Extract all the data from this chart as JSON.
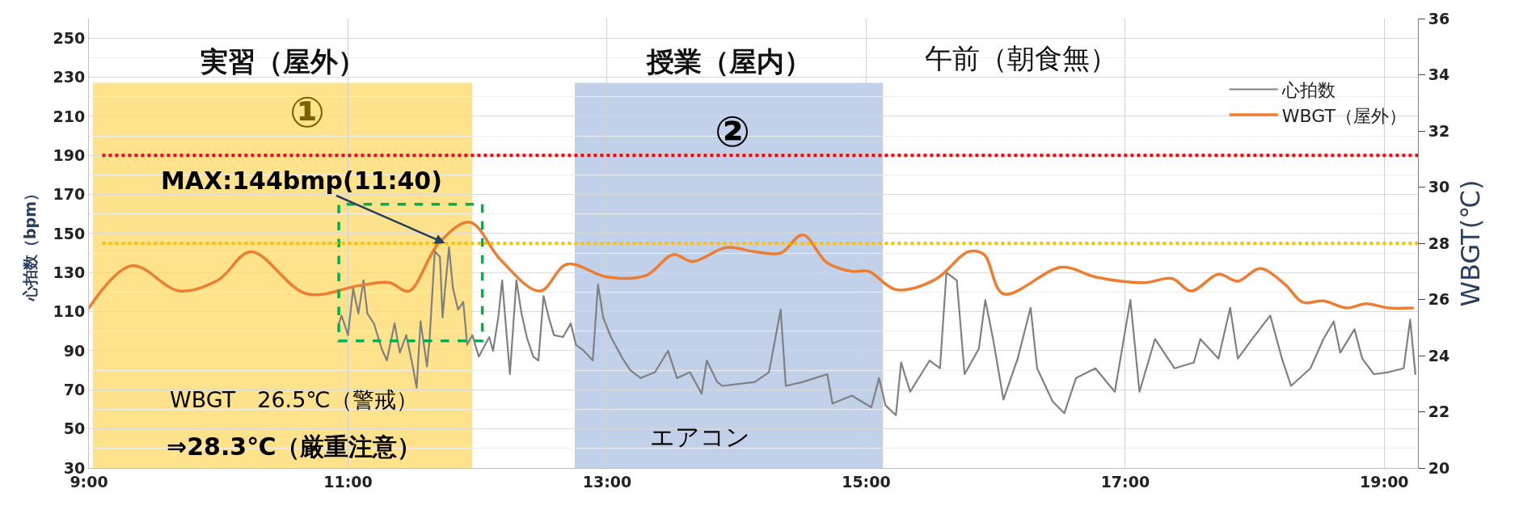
{
  "chart_data": {
    "type": "line",
    "title": "午前（朝食無）",
    "ylabel": "心拍数（bpm）",
    "y2label": "WBGT(℃)",
    "xlim": [
      9,
      19.26
    ],
    "xticks": [
      {
        "value": 9,
        "label": "9:00"
      },
      {
        "value": 11,
        "label": "11:00"
      },
      {
        "value": 13,
        "label": "13:00"
      },
      {
        "value": 15,
        "label": "15:00"
      },
      {
        "value": 17,
        "label": "17:00"
      },
      {
        "value": 19,
        "label": "19:00"
      }
    ],
    "ylim": [
      30,
      260
    ],
    "yticks": [
      30,
      50,
      70,
      90,
      110,
      130,
      150,
      170,
      190,
      210,
      230,
      250
    ],
    "y2lim": [
      20,
      36
    ],
    "y2ticks": [
      20,
      22,
      24,
      26,
      28,
      30,
      32,
      34,
      36
    ],
    "grid": true,
    "legend": "top right",
    "series": [
      {
        "name": "心拍数",
        "color": "#808080",
        "x": [
          10.93,
          10.95,
          11.0,
          11.04,
          11.08,
          11.12,
          11.15,
          11.2,
          11.26,
          11.3,
          11.36,
          11.4,
          11.45,
          11.5,
          11.53,
          11.56,
          11.61,
          11.63,
          11.67,
          11.71,
          11.73,
          11.75,
          11.78,
          11.81,
          11.85,
          11.89,
          11.92,
          11.96,
          12.01,
          12.09,
          12.12,
          12.16,
          12.19,
          12.25,
          12.3,
          12.34,
          12.38,
          12.43,
          12.47,
          12.51,
          12.55,
          12.59,
          12.66,
          12.72,
          12.76,
          12.82,
          12.89,
          12.93,
          12.97,
          13.03,
          13.12,
          13.18,
          13.26,
          13.37,
          13.47,
          13.54,
          13.64,
          13.73,
          13.77,
          13.85,
          13.89,
          14.14,
          14.25,
          14.34,
          14.38,
          14.51,
          14.7,
          14.74,
          14.89,
          15.04,
          15.1,
          15.15,
          15.23,
          15.27,
          15.34,
          15.49,
          15.57,
          15.62,
          15.7,
          15.76,
          15.87,
          15.92,
          15.98,
          16.06,
          16.17,
          16.27,
          16.32,
          16.44,
          16.53,
          16.62,
          16.77,
          16.92,
          17.04,
          17.11,
          17.23,
          17.38,
          17.53,
          17.58,
          17.72,
          17.81,
          17.87,
          17.98,
          18.12,
          18.21,
          18.28,
          18.43,
          18.53,
          18.61,
          18.66,
          18.77,
          18.83,
          18.92,
          19.03,
          19.15,
          19.2,
          19.24
        ],
        "values": [
          104,
          108,
          98,
          122,
          109,
          126,
          109,
          104,
          91,
          85,
          104,
          89,
          98,
          82,
          71,
          105,
          82,
          96,
          141,
          138,
          107,
          122,
          143,
          122,
          111,
          115,
          93,
          98,
          87,
          97,
          90,
          107,
          126,
          78,
          126,
          109,
          97,
          87,
          85,
          118,
          107,
          98,
          97,
          104,
          93,
          90,
          85,
          124,
          107,
          97,
          86,
          80,
          76,
          79,
          90,
          76,
          79,
          68,
          85,
          74,
          72,
          74,
          79,
          111,
          72,
          74,
          78,
          63,
          67,
          61,
          76,
          62,
          57,
          84,
          69,
          85,
          81,
          130,
          126,
          78,
          91,
          116,
          96,
          65,
          86,
          112,
          81,
          64,
          58,
          76,
          81,
          69,
          116,
          69,
          96,
          81,
          84,
          96,
          86,
          112,
          86,
          96,
          108,
          86,
          72,
          81,
          96,
          105,
          89,
          101,
          86,
          78,
          79,
          81,
          106,
          78
        ]
      },
      {
        "name": "WBGT（屋外）",
        "color": "#ed7d31",
        "axis": "y2",
        "x": [
          9.0,
          9.33,
          9.7,
          10.0,
          10.25,
          10.68,
          11.09,
          11.32,
          11.47,
          11.7,
          11.94,
          12.18,
          12.48,
          12.69,
          13.0,
          13.3,
          13.51,
          13.66,
          13.92,
          14.14,
          14.34,
          14.51,
          14.7,
          14.89,
          15.02,
          15.23,
          15.53,
          15.79,
          15.91,
          16.06,
          16.51,
          16.77,
          17.15,
          17.36,
          17.51,
          17.72,
          17.87,
          18.04,
          18.23,
          18.37,
          18.53,
          18.71,
          18.86,
          19.03,
          19.22
        ],
        "values": [
          25.7,
          27.2,
          26.3,
          26.7,
          27.7,
          26.2,
          26.5,
          26.6,
          26.3,
          28.0,
          28.75,
          27.4,
          26.3,
          27.25,
          26.8,
          26.85,
          27.6,
          27.35,
          27.85,
          27.7,
          27.65,
          28.3,
          27.3,
          27.0,
          27.0,
          26.35,
          26.7,
          27.7,
          27.6,
          26.2,
          27.15,
          26.8,
          26.6,
          26.75,
          26.3,
          26.9,
          26.65,
          27.1,
          26.55,
          25.9,
          25.95,
          25.7,
          25.85,
          25.7,
          25.7
        ]
      }
    ],
    "line_style": "solid",
    "ref_lines": [
      {
        "axis": "y",
        "value": 190,
        "color": "#ff0000",
        "line_style": "dotted"
      },
      {
        "axis": "y",
        "value": 145,
        "color": "#ffc000",
        "line_style": "dotted"
      }
    ],
    "bands": [
      {
        "axis": "x",
        "from": 9.03,
        "to": 11.96,
        "label": "実習（屋外）",
        "color": "#ffd966"
      },
      {
        "axis": "x",
        "from": 12.75,
        "to": 15.13,
        "label": "授業（屋内）",
        "color": "#adc2e3"
      }
    ],
    "annotations": [
      "①",
      "②",
      {
        "text": "MAX:144bmp(11:40)",
        "x": 11.75,
        "y": 145
      },
      "WBGT　26.5℃（警戒）",
      "⇒28.3℃（厳重注意）",
      "エアコン"
    ]
  }
}
